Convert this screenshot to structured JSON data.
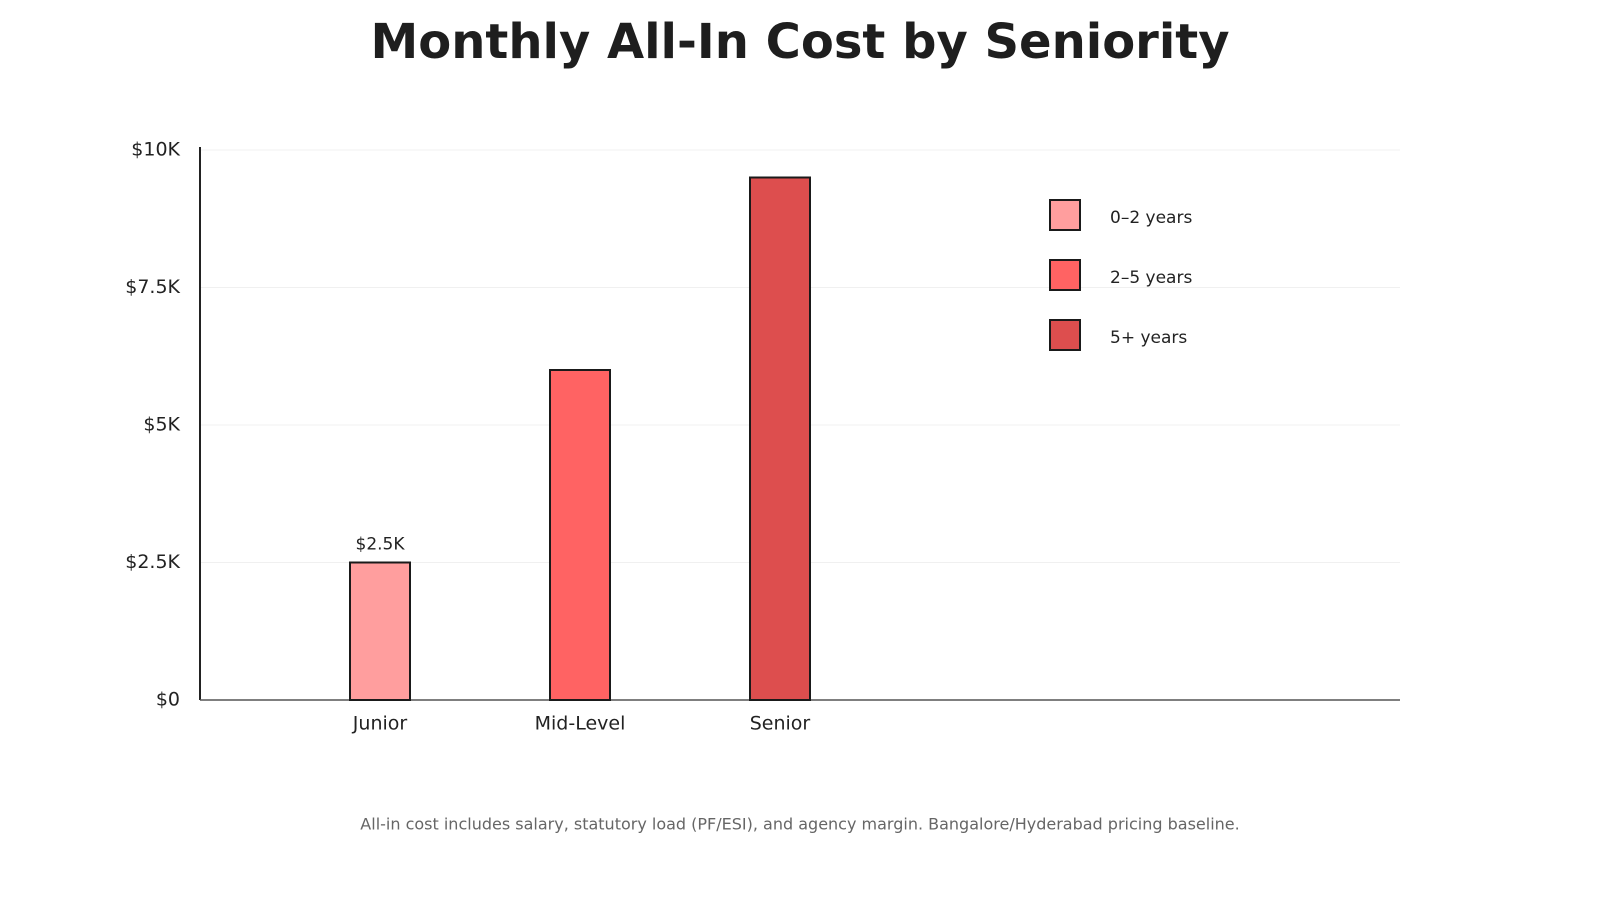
{
  "chart_data": {
    "type": "bar",
    "title": "Monthly All-In Cost by Seniority",
    "footnote": "All-in cost includes salary, statutory load (PF/ESI), and agency margin. Bangalore/Hyderabad pricing baseline.",
    "categories": [
      "Junior",
      "Mid-Level",
      "Senior"
    ],
    "values": [
      2500,
      6000,
      9500
    ],
    "value_labels": [
      "$2.5K",
      null,
      null
    ],
    "colors": [
      "#ff9e9e",
      "#ff6363",
      "#dd4e4e"
    ],
    "legend": [
      "0–2 years",
      "2–5 years",
      "5+ years"
    ],
    "ylim": [
      0,
      10000
    ],
    "yticks": [
      {
        "value": 0,
        "label": "$0"
      },
      {
        "value": 2500,
        "label": "$2.5K"
      },
      {
        "value": 5000,
        "label": "$5K"
      },
      {
        "value": 7500,
        "label": "$7.5K"
      },
      {
        "value": 10000,
        "label": "$10K"
      }
    ],
    "grid": true,
    "legend_position": "upper right"
  }
}
